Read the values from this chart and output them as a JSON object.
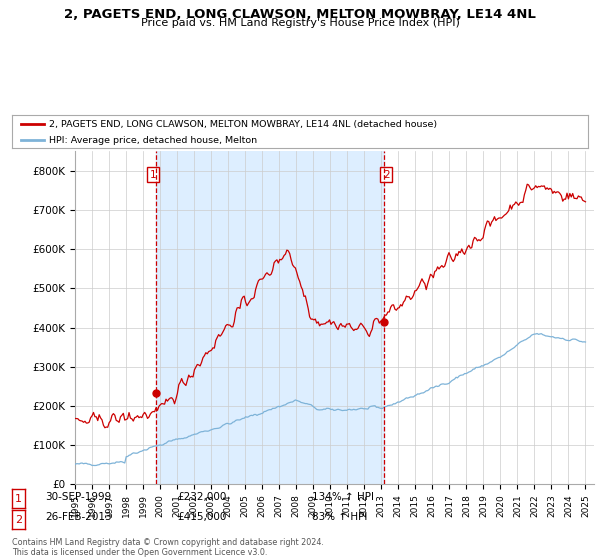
{
  "title": "2, PAGETS END, LONG CLAWSON, MELTON MOWBRAY, LE14 4NL",
  "subtitle": "Price paid vs. HM Land Registry's House Price Index (HPI)",
  "legend_line1": "2, PAGETS END, LONG CLAWSON, MELTON MOWBRAY, LE14 4NL (detached house)",
  "legend_line2": "HPI: Average price, detached house, Melton",
  "sale1_date": "30-SEP-1999",
  "sale1_price": "£232,000",
  "sale1_hpi": "134% ↑ HPI",
  "sale2_date": "26-FEB-2013",
  "sale2_price": "£415,000",
  "sale2_hpi": "83% ↑ HPI",
  "footer": "Contains HM Land Registry data © Crown copyright and database right 2024.\nThis data is licensed under the Open Government Licence v3.0.",
  "price_color": "#cc0000",
  "hpi_color": "#7eb3d8",
  "marker_color": "#cc0000",
  "vline_color": "#cc0000",
  "shade_color": "#ddeeff",
  "ylim": [
    0,
    850000
  ],
  "yticks": [
    0,
    100000,
    200000,
    300000,
    400000,
    500000,
    600000,
    700000,
    800000
  ],
  "ytick_labels": [
    "£0",
    "£100K",
    "£200K",
    "£300K",
    "£400K",
    "£500K",
    "£600K",
    "£700K",
    "£800K"
  ],
  "background_color": "#ffffff",
  "grid_color": "#cccccc",
  "sale1_t": 1999.75,
  "sale1_price_val": 232000,
  "sale2_t": 2013.15,
  "sale2_price_val": 415000
}
